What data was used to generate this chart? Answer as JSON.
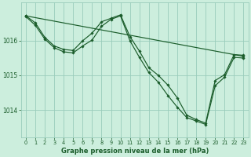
{
  "background_color": "#cceedd",
  "grid_color": "#99ccbb",
  "line_color": "#1a5c2a",
  "xlabel": "Graphe pression niveau de la mer (hPa)",
  "xlabel_color": "#1a5c2a",
  "xlim": [
    -0.5,
    23.5
  ],
  "ylim": [
    1013.2,
    1017.1
  ],
  "yticks": [
    1014,
    1015,
    1016
  ],
  "xticks": [
    0,
    1,
    2,
    3,
    4,
    5,
    6,
    7,
    8,
    9,
    10,
    11,
    12,
    13,
    14,
    15,
    16,
    17,
    18,
    19,
    20,
    21,
    22,
    23
  ],
  "line1_x": [
    0,
    1,
    2,
    3,
    4,
    5,
    6,
    7,
    8,
    9,
    10,
    11,
    12,
    13,
    14,
    15,
    16,
    17,
    18,
    19,
    20,
    21,
    22,
    23
  ],
  "line1_y": [
    1016.72,
    1016.52,
    1016.1,
    1015.85,
    1015.75,
    1015.72,
    1016.0,
    1016.22,
    1016.55,
    1016.65,
    1016.75,
    1016.12,
    1015.7,
    1015.22,
    1015.0,
    1014.72,
    1014.35,
    1013.85,
    1013.72,
    1013.62,
    1014.85,
    1015.02,
    1015.6,
    1015.58
  ],
  "line2_x": [
    0,
    1,
    2,
    3,
    4,
    5,
    6,
    7,
    8,
    9,
    10,
    11,
    12,
    13,
    14,
    15,
    16,
    17,
    18,
    19,
    20,
    21,
    22,
    23
  ],
  "line2_y": [
    1016.7,
    1016.45,
    1016.05,
    1015.8,
    1015.68,
    1015.65,
    1015.85,
    1016.02,
    1016.42,
    1016.62,
    1016.72,
    1016.0,
    1015.52,
    1015.08,
    1014.8,
    1014.42,
    1014.08,
    1013.78,
    1013.68,
    1013.58,
    1014.7,
    1014.95,
    1015.52,
    1015.5
  ],
  "line3_x": [
    0,
    23
  ],
  "line3_y": [
    1016.72,
    1015.55
  ]
}
